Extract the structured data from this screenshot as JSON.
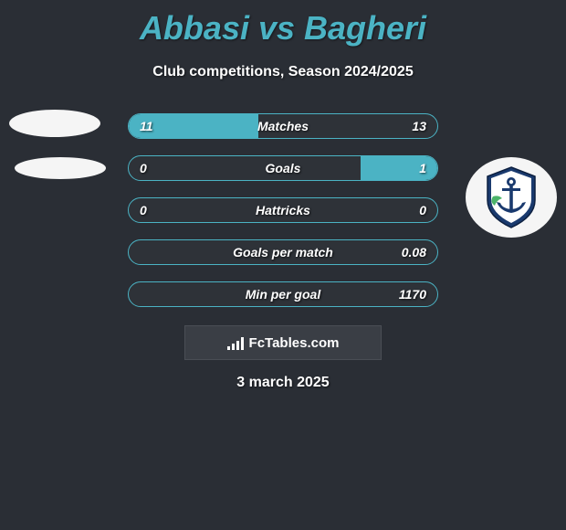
{
  "title": "Abbasi vs Bagheri",
  "subtitle": "Club competitions, Season 2024/2025",
  "brand": "FcTables.com",
  "date": "3 march 2025",
  "colors": {
    "accent": "#4bb3c4",
    "background": "#2a2e35",
    "text": "#ffffff",
    "badge_primary": "#1a3a6e",
    "badge_secondary": "#ffffff"
  },
  "stats": [
    {
      "label": "Matches",
      "left_val": "11",
      "right_val": "13",
      "left_pct": 42,
      "right_pct": 0
    },
    {
      "label": "Goals",
      "left_val": "0",
      "right_val": "1",
      "left_pct": 0,
      "right_pct": 25
    },
    {
      "label": "Hattricks",
      "left_val": "0",
      "right_val": "0",
      "left_pct": 0,
      "right_pct": 0
    },
    {
      "label": "Goals per match",
      "left_val": "",
      "right_val": "0.08",
      "left_pct": 0,
      "right_pct": 0
    },
    {
      "label": "Min per goal",
      "left_val": "",
      "right_val": "1170",
      "left_pct": 0,
      "right_pct": 0
    }
  ],
  "player_left": {
    "name": "Abbasi",
    "has_logo": false
  },
  "player_right": {
    "name": "Bagheri",
    "club": "Malavan",
    "has_logo": true
  }
}
